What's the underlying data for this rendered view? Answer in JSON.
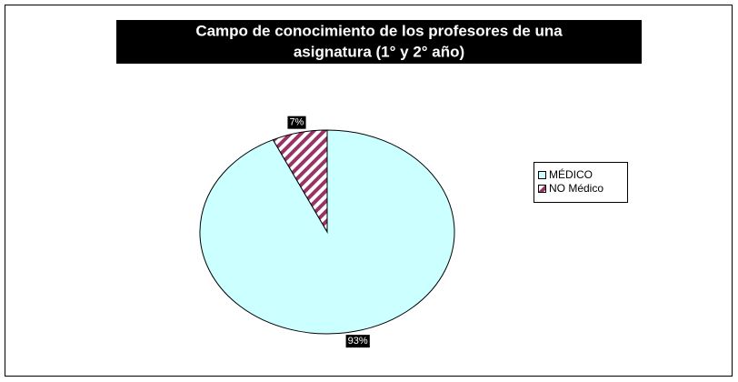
{
  "chart_data": {
    "type": "pie",
    "title": [
      "Campo de conocimiento de los profesores de una",
      "asignatura  (1° y 2° año)"
    ],
    "categories": [
      "MÉDICO",
      "NO Médico"
    ],
    "values": [
      93,
      7
    ],
    "value_labels": [
      "93%",
      "7%"
    ],
    "colors": [
      "#ccffff",
      "#993366"
    ],
    "hatched": [
      false,
      true
    ],
    "legend": "right"
  }
}
